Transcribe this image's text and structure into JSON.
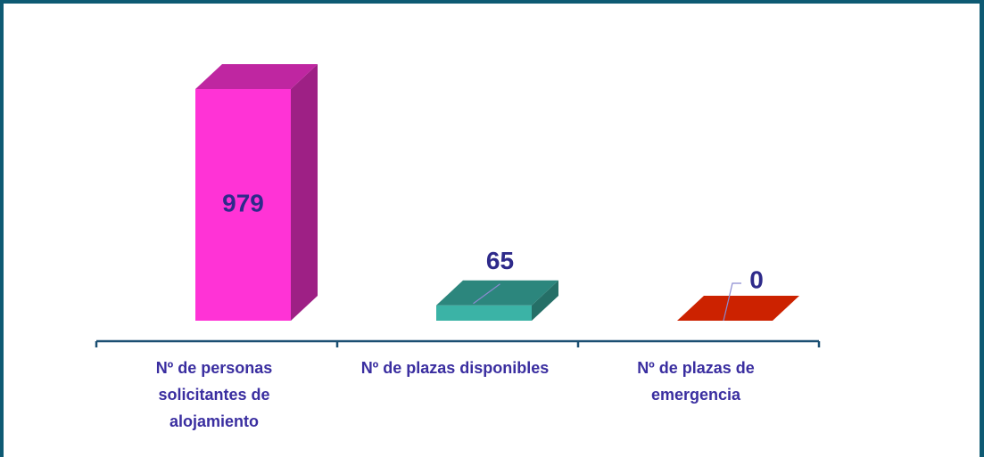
{
  "chart_data": {
    "type": "bar",
    "categories": [
      "Nº de personas solicitantes de alojamiento",
      "Nº de plazas disponibles",
      "Nº de plazas de emergencia"
    ],
    "values": [
      979,
      65,
      0
    ],
    "colors": [
      "#ff33d6",
      "#3bb3a6",
      "#cc2200"
    ]
  }
}
